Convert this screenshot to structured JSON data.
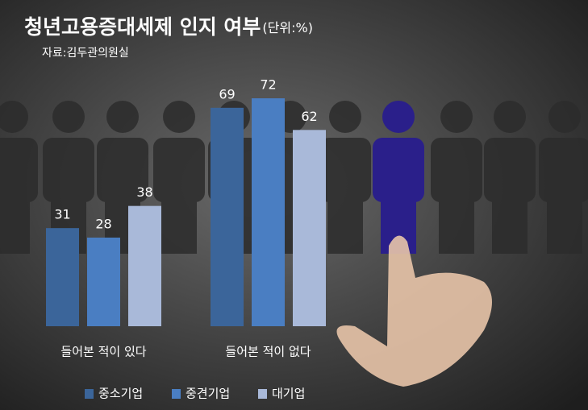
{
  "chart_data": {
    "type": "bar",
    "title": "청년고용증대세제 인지 여부",
    "unit_note": "(단위:%)",
    "subtitle": "자료:김두관의원실",
    "categories": [
      "들어본 적이 있다",
      "들어본 적이 없다"
    ],
    "series": [
      {
        "name": "중소기업",
        "color": "#3b659a",
        "values": [
          31,
          69
        ]
      },
      {
        "name": "중견기업",
        "color": "#4a7ec2",
        "values": [
          28,
          72
        ]
      },
      {
        "name": "대기업",
        "color": "#a9b9d9",
        "values": [
          38,
          62
        ]
      }
    ]
  }
}
